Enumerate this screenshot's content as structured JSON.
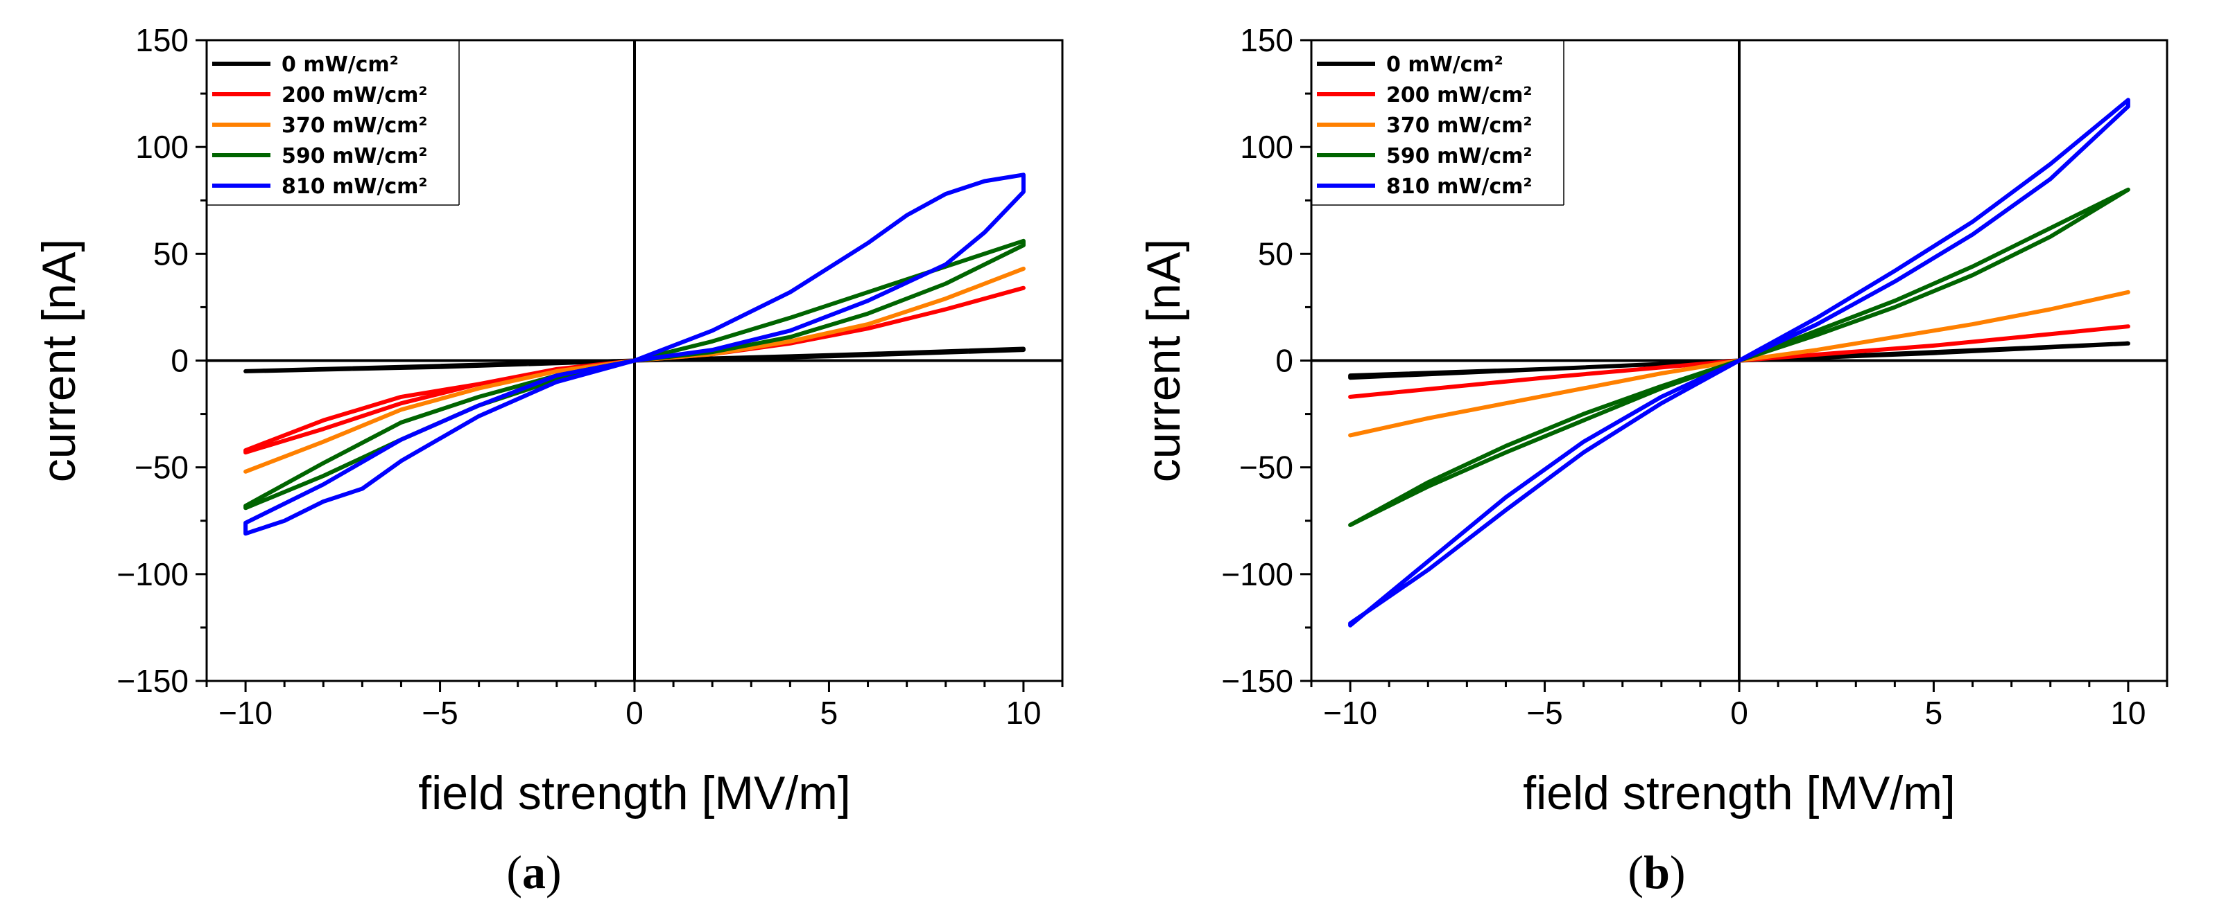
{
  "chart_data": [
    {
      "type": "line",
      "panel_label": "a",
      "xlabel": "field strength [MV/m]",
      "ylabel": "current [nA]",
      "xlim": [
        -11,
        11
      ],
      "ylim": [
        -150,
        150
      ],
      "xticks": [
        -10,
        -5,
        0,
        5,
        10
      ],
      "xtick_labels": [
        "−10",
        "−5",
        "0",
        "5",
        "10"
      ],
      "yticks": [
        -150,
        -100,
        -50,
        0,
        50,
        100,
        150
      ],
      "ytick_labels": [
        "−150",
        "−100",
        "−50",
        "0",
        "50",
        "100",
        "150"
      ],
      "legend_position": "top-left",
      "series": [
        {
          "name": "0 mW/cm²",
          "color": "#000000",
          "x": [
            -10,
            -5,
            0,
            5,
            10,
            10,
            5,
            0,
            -5,
            -10
          ],
          "y": [
            -5,
            -2.5,
            0,
            2.5,
            5.5,
            5,
            2,
            0,
            -3,
            -5
          ]
        },
        {
          "name": "200 mW/cm²",
          "color": "#ff0000",
          "x": [
            -10,
            -8,
            -6,
            -4,
            -2,
            0,
            2,
            4,
            6,
            8,
            10,
            10,
            8,
            6,
            4,
            2,
            0,
            -2,
            -4,
            -6,
            -8,
            -10
          ],
          "y": [
            -43,
            -32,
            -20,
            -11,
            -4,
            0,
            3,
            8,
            15,
            24,
            34,
            34,
            24,
            15,
            8,
            3,
            0,
            -4,
            -11,
            -17,
            -28,
            -42
          ]
        },
        {
          "name": "370 mW/cm²",
          "color": "#ff8000",
          "x": [
            -10,
            -8,
            -6,
            -4,
            -2,
            0,
            2,
            4,
            6,
            8,
            10,
            10,
            8,
            6,
            4,
            2,
            0,
            -2,
            -4,
            -6,
            -8,
            -10
          ],
          "y": [
            -52,
            -38,
            -23,
            -13,
            -5,
            0,
            3,
            9,
            17,
            29,
            43,
            43,
            29,
            17,
            9,
            3,
            0,
            -5,
            -13,
            -23,
            -38,
            -52
          ]
        },
        {
          "name": "590 mW/cm²",
          "color": "#006400",
          "x": [
            -10,
            -8,
            -6,
            -4,
            -2,
            0,
            2,
            4,
            6,
            8,
            10,
            10,
            8,
            6,
            4,
            2,
            0,
            -2,
            -4,
            -6,
            -8,
            -10
          ],
          "y": [
            -69,
            -54,
            -37,
            -21,
            -9,
            0,
            4,
            11,
            22,
            36,
            54,
            56,
            44,
            32,
            20,
            9,
            0,
            -7,
            -17,
            -29,
            -48,
            -68
          ]
        },
        {
          "name": "810 mW/cm²",
          "color": "#0000ff",
          "x": [
            -10,
            -9,
            -8,
            -7,
            -6,
            -4,
            -2,
            0,
            2,
            4,
            6,
            8,
            9,
            10,
            10,
            9,
            8,
            7,
            6,
            4,
            2,
            0,
            -2,
            -4,
            -6,
            -8,
            -10
          ],
          "y": [
            -81,
            -75,
            -66,
            -60,
            -47,
            -26,
            -10,
            0,
            5,
            14,
            28,
            45,
            60,
            79,
            87,
            84,
            78,
            68,
            55,
            32,
            14,
            0,
            -7,
            -21,
            -37,
            -58,
            -76
          ]
        }
      ]
    },
    {
      "type": "line",
      "panel_label": "b",
      "xlabel": "field strength [MV/m]",
      "ylabel": "current [nA]",
      "xlim": [
        -11,
        11
      ],
      "ylim": [
        -150,
        150
      ],
      "xticks": [
        -10,
        -5,
        0,
        5,
        10
      ],
      "xtick_labels": [
        "−10",
        "−5",
        "0",
        "5",
        "10"
      ],
      "yticks": [
        -150,
        -100,
        -50,
        0,
        50,
        100,
        150
      ],
      "ytick_labels": [
        "−150",
        "−100",
        "−50",
        "0",
        "50",
        "100",
        "150"
      ],
      "legend_position": "top-left",
      "series": [
        {
          "name": "0 mW/cm²",
          "color": "#000000",
          "x": [
            -10,
            -5,
            0,
            5,
            10,
            10,
            5,
            0,
            -5,
            -10
          ],
          "y": [
            -8,
            -4,
            0,
            3.5,
            8,
            8,
            4,
            0,
            -4,
            -7
          ]
        },
        {
          "name": "200 mW/cm²",
          "color": "#ff0000",
          "x": [
            -10,
            -5,
            0,
            5,
            10,
            10,
            5,
            0,
            -5,
            -10
          ],
          "y": [
            -17,
            -8,
            0,
            7,
            16,
            16,
            7,
            0,
            -8,
            -17
          ]
        },
        {
          "name": "370 mW/cm²",
          "color": "#ff8000",
          "x": [
            -10,
            -8,
            -6,
            -4,
            -2,
            0,
            2,
            4,
            6,
            8,
            10,
            10,
            8,
            6,
            4,
            2,
            0,
            -2,
            -4,
            -6,
            -8,
            -10
          ],
          "y": [
            -35,
            -27,
            -20,
            -13,
            -6,
            0,
            5,
            11,
            17,
            24,
            32,
            32,
            24,
            17,
            11,
            5,
            0,
            -6,
            -13,
            -20,
            -27,
            -35
          ]
        },
        {
          "name": "590 mW/cm²",
          "color": "#006400",
          "x": [
            -10,
            -8,
            -6,
            -4,
            -2,
            0,
            2,
            4,
            6,
            8,
            10,
            10,
            8,
            6,
            4,
            2,
            0,
            -2,
            -4,
            -6,
            -8,
            -10
          ],
          "y": [
            -77,
            -59,
            -43,
            -28,
            -13,
            0,
            12,
            25,
            40,
            58,
            80,
            80,
            62,
            44,
            28,
            14,
            0,
            -12,
            -25,
            -40,
            -57,
            -77
          ]
        },
        {
          "name": "810 mW/cm²",
          "color": "#0000ff",
          "x": [
            -10,
            -8,
            -6,
            -4,
            -2,
            0,
            2,
            4,
            6,
            8,
            10,
            10,
            8,
            6,
            4,
            2,
            0,
            -2,
            -4,
            -6,
            -8,
            -10
          ],
          "y": [
            -124,
            -94,
            -64,
            -38,
            -17,
            0,
            17,
            37,
            59,
            85,
            119,
            122,
            92,
            65,
            42,
            20,
            0,
            -20,
            -43,
            -70,
            -98,
            -123
          ]
        }
      ]
    }
  ]
}
